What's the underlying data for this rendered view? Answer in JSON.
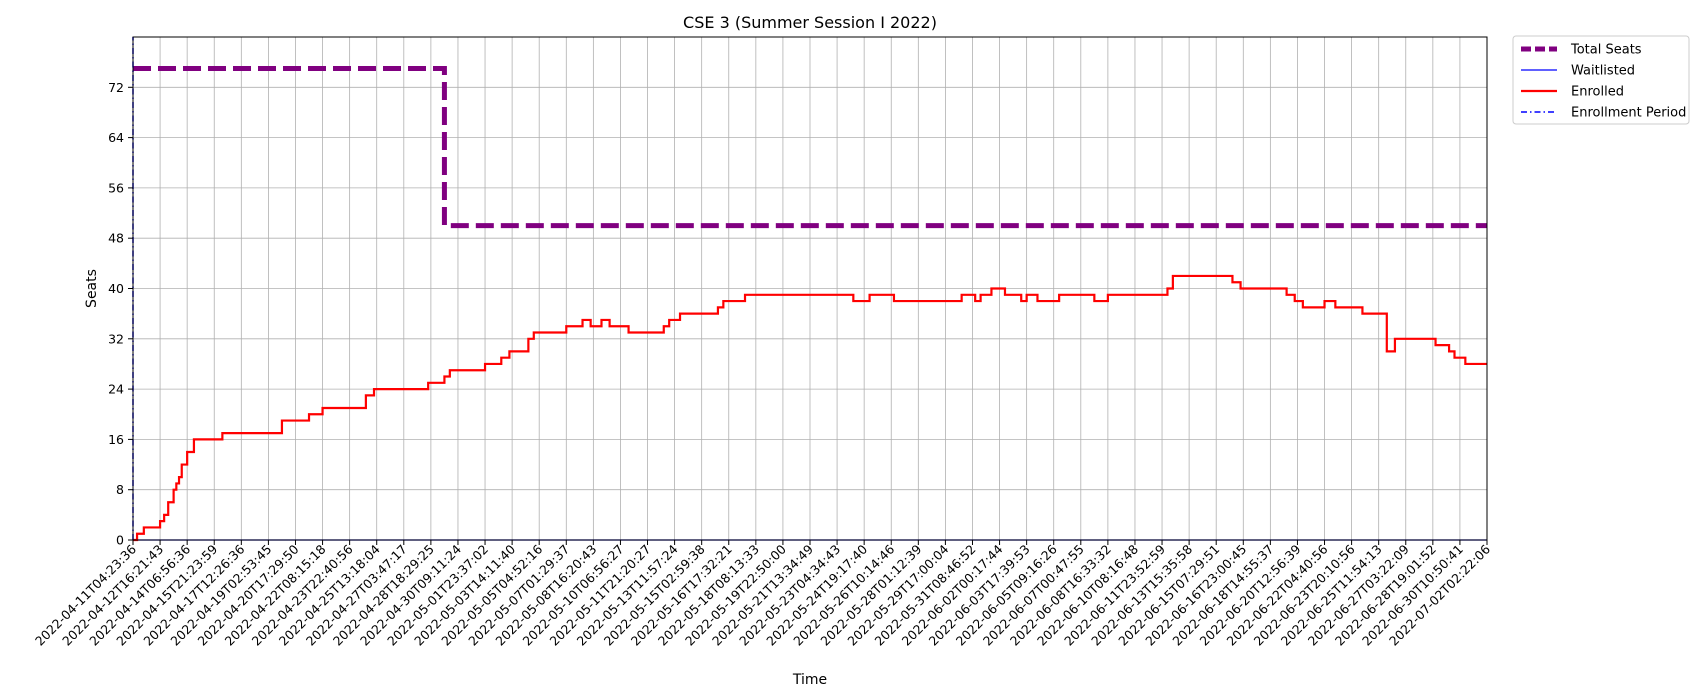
{
  "chart_data": {
    "type": "line",
    "title": "CSE 3 (Summer Session I 2022)",
    "xlabel": "Time",
    "ylabel": "Seats",
    "ylim": [
      0,
      80
    ],
    "yticks": [
      0,
      8,
      16,
      24,
      32,
      40,
      48,
      56,
      64,
      72
    ],
    "grid": true,
    "legend_position": "outside top-right",
    "x_tick_labels": [
      "2022-04-11T04:23:36",
      "2022-04-12T16:21:43",
      "2022-04-14T06:56:36",
      "2022-04-15T21:23:59",
      "2022-04-17T12:26:36",
      "2022-04-19T02:53:45",
      "2022-04-20T17:29:50",
      "2022-04-22T08:15:18",
      "2022-04-23T22:40:56",
      "2022-04-25T13:18:04",
      "2022-04-27T03:47:17",
      "2022-04-28T18:29:25",
      "2022-04-30T09:11:24",
      "2022-05-01T23:37:02",
      "2022-05-03T14:11:40",
      "2022-05-05T04:52:16",
      "2022-05-07T01:29:37",
      "2022-05-08T16:20:43",
      "2022-05-10T06:56:27",
      "2022-05-11T21:20:27",
      "2022-05-13T11:57:24",
      "2022-05-15T02:59:38",
      "2022-05-16T17:32:21",
      "2022-05-18T08:13:33",
      "2022-05-19T22:50:00",
      "2022-05-21T13:34:49",
      "2022-05-23T04:34:43",
      "2022-05-24T19:17:40",
      "2022-05-26T10:14:46",
      "2022-05-28T01:12:39",
      "2022-05-29T17:00:04",
      "2022-05-31T08:46:52",
      "2022-06-02T00:17:44",
      "2022-06-03T17:39:53",
      "2022-06-05T09:16:26",
      "2022-06-07T00:47:55",
      "2022-06-08T16:33:32",
      "2022-06-10T08:16:48",
      "2022-06-11T23:52:59",
      "2022-06-13T15:35:58",
      "2022-06-15T07:29:51",
      "2022-06-16T23:00:45",
      "2022-06-18T14:55:37",
      "2022-06-20T12:56:39",
      "2022-06-22T04:40:56",
      "2022-06-23T20:10:56",
      "2022-06-25T11:54:13",
      "2022-06-27T03:22:09",
      "2022-06-28T19:01:52",
      "2022-06-30T10:50:41",
      "2022-07-02T02:22:06"
    ],
    "series": [
      {
        "name": "Total Seats",
        "color": "#800080",
        "style": "dashed-thick",
        "points": [
          [
            0,
            75
          ],
          [
            11.5,
            75
          ],
          [
            11.5,
            50
          ],
          [
            50,
            50
          ]
        ]
      },
      {
        "name": "Waitlisted",
        "color": "#0000ff",
        "style": "solid-thin",
        "points": [
          [
            0,
            0
          ],
          [
            50,
            0
          ]
        ]
      },
      {
        "name": "Enrolled",
        "color": "#ff0000",
        "style": "solid",
        "points": [
          [
            0,
            0
          ],
          [
            0.15,
            1
          ],
          [
            0.4,
            2
          ],
          [
            1.0,
            3
          ],
          [
            1.15,
            4
          ],
          [
            1.3,
            6
          ],
          [
            1.5,
            8
          ],
          [
            1.6,
            9
          ],
          [
            1.7,
            10
          ],
          [
            1.8,
            12
          ],
          [
            2.0,
            14
          ],
          [
            2.25,
            16
          ],
          [
            3.0,
            16
          ],
          [
            3.3,
            17
          ],
          [
            4.4,
            17
          ],
          [
            4.5,
            17
          ],
          [
            5.5,
            19
          ],
          [
            6.5,
            20
          ],
          [
            6.9,
            20
          ],
          [
            7.0,
            21
          ],
          [
            8.6,
            23
          ],
          [
            8.9,
            24
          ],
          [
            10.8,
            24
          ],
          [
            10.9,
            25
          ],
          [
            11.5,
            26
          ],
          [
            11.7,
            27
          ],
          [
            12.0,
            27
          ],
          [
            13.0,
            28
          ],
          [
            13.6,
            29
          ],
          [
            13.9,
            30
          ],
          [
            14.6,
            32
          ],
          [
            14.8,
            33
          ],
          [
            15.9,
            33
          ],
          [
            16.0,
            34
          ],
          [
            16.6,
            35
          ],
          [
            16.9,
            34
          ],
          [
            17.3,
            35
          ],
          [
            17.6,
            34
          ],
          [
            18.3,
            33
          ],
          [
            19.1,
            33
          ],
          [
            19.6,
            34
          ],
          [
            19.8,
            35
          ],
          [
            20.2,
            36
          ],
          [
            21.0,
            36
          ],
          [
            21.6,
            37
          ],
          [
            21.8,
            38
          ],
          [
            22.6,
            39
          ],
          [
            24.2,
            39
          ],
          [
            26.6,
            38
          ],
          [
            27.2,
            39
          ],
          [
            28.1,
            38
          ],
          [
            29.8,
            38
          ],
          [
            30.3,
            38
          ],
          [
            30.6,
            39
          ],
          [
            31.0,
            39
          ],
          [
            31.1,
            38
          ],
          [
            31.3,
            39
          ],
          [
            31.7,
            40
          ],
          [
            32.2,
            39
          ],
          [
            32.8,
            38
          ],
          [
            33.0,
            39
          ],
          [
            33.4,
            38
          ],
          [
            34.2,
            39
          ],
          [
            35.0,
            39
          ],
          [
            35.5,
            38
          ],
          [
            36.0,
            39
          ],
          [
            38.0,
            39
          ],
          [
            38.2,
            40
          ],
          [
            38.4,
            42
          ],
          [
            40.4,
            42
          ],
          [
            40.6,
            41
          ],
          [
            40.9,
            40
          ],
          [
            41.9,
            40
          ],
          [
            42.6,
            39
          ],
          [
            42.9,
            38
          ],
          [
            43.2,
            37
          ],
          [
            44.0,
            38
          ],
          [
            44.4,
            37
          ],
          [
            45.4,
            36
          ],
          [
            46.1,
            36
          ],
          [
            46.3,
            30
          ],
          [
            46.6,
            32
          ],
          [
            47.4,
            32
          ],
          [
            48.1,
            31
          ],
          [
            48.6,
            30
          ],
          [
            48.8,
            29
          ],
          [
            49.2,
            28
          ],
          [
            50.0,
            28
          ]
        ]
      },
      {
        "name": "Enrollment Period",
        "color": "#0000ff",
        "style": "dash-dot",
        "points": [
          [
            0.0,
            0
          ],
          [
            0.0,
            80
          ]
        ]
      }
    ]
  }
}
